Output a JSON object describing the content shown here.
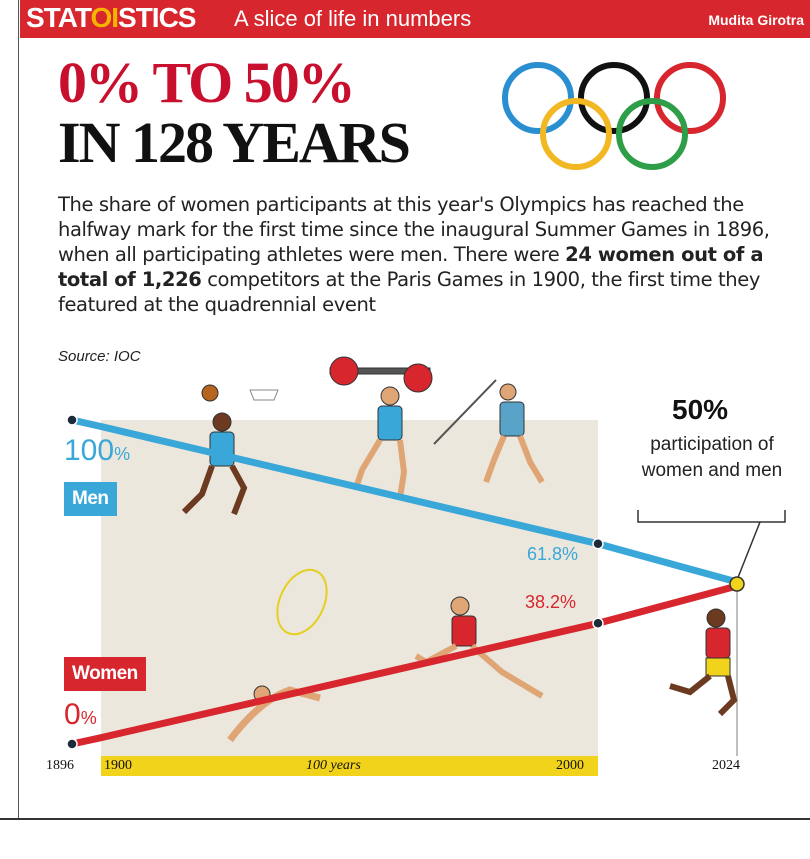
{
  "header": {
    "brand_left": "STAT",
    "brand_mid": "OI",
    "brand_right": "STICS",
    "tagline": "A slice of life in numbers",
    "author": "Mudita Girotra"
  },
  "headline": {
    "line1": "0% TO 50%",
    "line2": "IN 128 YEARS"
  },
  "description": {
    "part1": "The share of women participants at this year's Olympics has reached the halfway mark for the first time since the inaugural Summer Games in 1896, when all participating athletes were men. There were ",
    "bold": "24 women out of a total of 1,226",
    "part2": " competitors at the Paris Games in 1900, the first time they featured at the quadrennial event"
  },
  "source": "Source: IOC",
  "chart_data": {
    "type": "line",
    "x": [
      1896,
      1900,
      2000,
      2024
    ],
    "xlim": [
      1896,
      2024
    ],
    "ylim": [
      0,
      100
    ],
    "series": [
      {
        "name": "Men",
        "values": [
          100,
          98.0,
          61.8,
          50
        ],
        "color": "#3aa7d9",
        "start_label": "100",
        "end_label": "61.8%"
      },
      {
        "name": "Women",
        "values": [
          0,
          2.0,
          38.2,
          50
        ],
        "color": "#d7262d",
        "start_label": "0",
        "end_label": "38.2%"
      }
    ],
    "callout": {
      "value": "50%",
      "text": "participation of women and men"
    },
    "timeline": {
      "ticks": [
        "1896",
        "1900",
        "2000",
        "2024"
      ],
      "span_label": "100 years"
    },
    "percent_unit": "%"
  },
  "colors": {
    "men": "#3aa7d9",
    "women": "#d7262d",
    "header": "#d7262d",
    "timeline": "#f2d31b"
  }
}
